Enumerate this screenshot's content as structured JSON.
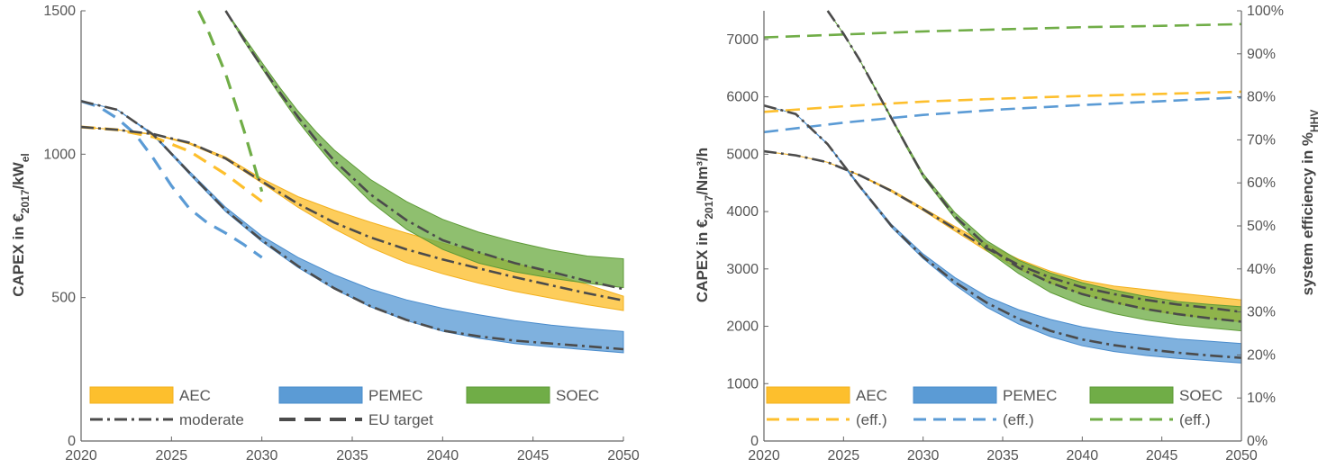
{
  "colors": {
    "AEC": "#fdbf2d",
    "AEC_stroke": "#f2b01e",
    "PEMEC": "#5b9bd5",
    "PEMEC_stroke": "#4a8ccc",
    "SOEC": "#70ad47",
    "SOEC_stroke": "#5e9a37",
    "dark": "#4b4b4b",
    "axis": "#666666"
  },
  "chart_data": [
    {
      "type": "area",
      "ylabel_main": "CAPEX in €",
      "ylabel_sub": "2017",
      "ylabel_tail": "/kW",
      "ylabel_tail_sub": "el",
      "xlim": [
        2020,
        2050
      ],
      "ylim": [
        0,
        1500
      ],
      "xticks": [
        "2020",
        "2025",
        "2030",
        "2035",
        "2040",
        "2045",
        "2050"
      ],
      "yticks": [
        "0",
        "500",
        "1000",
        "1500"
      ],
      "bands": [
        {
          "name": "AEC",
          "x": [
            2020,
            2022,
            2024,
            2026,
            2028,
            2030,
            2032,
            2034,
            2036,
            2038,
            2040,
            2042,
            2044,
            2046,
            2048,
            2050
          ],
          "upper": [
            1095,
            1085,
            1070,
            1040,
            990,
            915,
            852,
            805,
            763,
            725,
            690,
            655,
            620,
            583,
            545,
            505
          ],
          "lower": [
            1095,
            1085,
            1068,
            1035,
            982,
            900,
            815,
            740,
            675,
            622,
            583,
            550,
            522,
            498,
            475,
            455
          ]
        },
        {
          "name": "PEMEC",
          "x": [
            2020,
            2022,
            2024,
            2026,
            2028,
            2030,
            2032,
            2034,
            2036,
            2038,
            2040,
            2042,
            2044,
            2046,
            2048,
            2050
          ],
          "upper": [
            1185,
            1155,
            1070,
            940,
            815,
            715,
            640,
            580,
            530,
            492,
            463,
            440,
            420,
            404,
            392,
            382
          ],
          "lower": [
            1185,
            1155,
            1065,
            930,
            800,
            695,
            605,
            530,
            468,
            420,
            383,
            358,
            340,
            328,
            318,
            308
          ]
        },
        {
          "name": "SOEC",
          "x": [
            2028,
            2029,
            2030,
            2031,
            2032,
            2033,
            2034,
            2036,
            2038,
            2040,
            2042,
            2044,
            2046,
            2048,
            2050
          ],
          "upper": [
            1500,
            1410,
            1320,
            1232,
            1150,
            1078,
            1015,
            912,
            835,
            773,
            728,
            694,
            666,
            645,
            635
          ],
          "lower": [
            1500,
            1395,
            1300,
            1205,
            1115,
            1035,
            960,
            835,
            738,
            668,
            620,
            590,
            568,
            550,
            535
          ]
        }
      ],
      "moderate": [
        {
          "x": [
            2020,
            2022,
            2024,
            2026,
            2028,
            2030,
            2032,
            2034,
            2036,
            2038,
            2040,
            2042,
            2044,
            2046,
            2048,
            2050
          ],
          "y": [
            1095,
            1085,
            1070,
            1040,
            985,
            905,
            827,
            762,
            710,
            668,
            633,
            602,
            571,
            543,
            515,
            490
          ]
        },
        {
          "x": [
            2020,
            2022,
            2024,
            2026,
            2028,
            2030,
            2032,
            2034,
            2036,
            2038,
            2040,
            2042,
            2044,
            2046,
            2048,
            2050
          ],
          "y": [
            1185,
            1155,
            1068,
            935,
            805,
            700,
            610,
            533,
            470,
            422,
            385,
            365,
            350,
            340,
            330,
            320
          ]
        },
        {
          "x": [
            2028,
            2029,
            2030,
            2031,
            2032,
            2033,
            2034,
            2036,
            2038,
            2040,
            2042,
            2044,
            2046,
            2048,
            2050
          ],
          "y": [
            1500,
            1400,
            1305,
            1215,
            1130,
            1050,
            978,
            860,
            770,
            700,
            658,
            620,
            590,
            558,
            530
          ]
        }
      ],
      "eu_target": [
        {
          "name": "AEC",
          "x": [
            2020,
            2022,
            2024,
            2026,
            2028,
            2030
          ],
          "y": [
            1095,
            1085,
            1060,
            1010,
            930,
            835
          ]
        },
        {
          "name": "PEMEC",
          "x": [
            2020,
            2021,
            2022,
            2023,
            2024,
            2025,
            2026,
            2027,
            2028,
            2029,
            2030
          ],
          "y": [
            1185,
            1165,
            1125,
            1070,
            985,
            890,
            810,
            760,
            725,
            685,
            640
          ]
        },
        {
          "name": "SOEC",
          "x": [
            2026.5,
            2027,
            2028,
            2029,
            2030
          ],
          "y": [
            1500,
            1435,
            1280,
            1085,
            870
          ]
        }
      ],
      "legend": {
        "row1": [
          "AEC",
          "PEMEC",
          "SOEC"
        ],
        "row2": [
          "moderate",
          "EU target"
        ]
      }
    },
    {
      "type": "area",
      "ylabel_main": "CAPEX in €",
      "ylabel_sub": "2017",
      "ylabel_tail": "/Nm³/h",
      "y2label_main": "system efficiency in %",
      "y2label_sub": "HHV",
      "xlim": [
        2020,
        2050
      ],
      "ylim": [
        0,
        7500
      ],
      "y2lim": [
        0,
        100
      ],
      "xticks": [
        "2020",
        "2025",
        "2030",
        "2035",
        "2040",
        "2045",
        "2050"
      ],
      "yticks": [
        "0",
        "1000",
        "2000",
        "3000",
        "4000",
        "5000",
        "6000",
        "7000"
      ],
      "y2ticks": [
        "0%",
        "10%",
        "20%",
        "30%",
        "40%",
        "50%",
        "60%",
        "70%",
        "80%",
        "90%",
        "100%"
      ],
      "bands": [
        {
          "name": "AEC",
          "x": [
            2020,
            2022,
            2024,
            2026,
            2028,
            2030,
            2032,
            2034,
            2036,
            2038,
            2040,
            2042,
            2044,
            2046,
            2048,
            2050
          ],
          "upper": [
            5050,
            4980,
            4860,
            4640,
            4380,
            4060,
            3740,
            3440,
            3170,
            2960,
            2800,
            2700,
            2640,
            2580,
            2520,
            2460
          ],
          "lower": [
            5050,
            4980,
            4860,
            4630,
            4350,
            4020,
            3660,
            3310,
            3000,
            2750,
            2560,
            2410,
            2290,
            2200,
            2140,
            2080
          ]
        },
        {
          "name": "PEMEC",
          "x": [
            2020,
            2022,
            2024,
            2026,
            2028,
            2030,
            2032,
            2034,
            2036,
            2038,
            2040,
            2042,
            2044,
            2046,
            2048,
            2050
          ],
          "upper": [
            5850,
            5700,
            5180,
            4460,
            3780,
            3260,
            2850,
            2520,
            2290,
            2120,
            1990,
            1900,
            1840,
            1780,
            1740,
            1700
          ],
          "lower": [
            5850,
            5700,
            5170,
            4430,
            3730,
            3180,
            2720,
            2330,
            2040,
            1820,
            1660,
            1560,
            1490,
            1440,
            1400,
            1360
          ]
        },
        {
          "name": "SOEC",
          "x": [
            2024,
            2025,
            2026,
            2027,
            2028,
            2029,
            2030,
            2032,
            2034,
            2036,
            2038,
            2040,
            2042,
            2044,
            2046,
            2048,
            2050
          ],
          "upper": [
            7500,
            7100,
            6650,
            6150,
            5650,
            5150,
            4660,
            3980,
            3490,
            3150,
            2930,
            2760,
            2630,
            2520,
            2430,
            2380,
            2340
          ],
          "lower": [
            7500,
            7100,
            6650,
            6130,
            5620,
            5100,
            4600,
            3880,
            3320,
            2920,
            2590,
            2370,
            2220,
            2110,
            2030,
            1970,
            1920
          ]
        }
      ],
      "moderate": [
        {
          "x": [
            2020,
            2022,
            2024,
            2026,
            2028,
            2030,
            2032,
            2034,
            2036,
            2038,
            2040,
            2042,
            2044,
            2046,
            2048,
            2050
          ],
          "y": [
            5050,
            4980,
            4860,
            4635,
            4360,
            4040,
            3700,
            3360,
            3070,
            2850,
            2680,
            2560,
            2460,
            2380,
            2320,
            2250
          ]
        },
        {
          "x": [
            2020,
            2022,
            2024,
            2026,
            2028,
            2030,
            2032,
            2034,
            2036,
            2038,
            2040,
            2042,
            2044,
            2046,
            2048,
            2050
          ],
          "y": [
            5850,
            5700,
            5175,
            4445,
            3755,
            3210,
            2770,
            2410,
            2130,
            1920,
            1770,
            1670,
            1600,
            1540,
            1490,
            1450
          ]
        },
        {
          "x": [
            2024,
            2025,
            2026,
            2027,
            2028,
            2029,
            2030,
            2032,
            2034,
            2036,
            2038,
            2040,
            2042,
            2044,
            2046,
            2048,
            2050
          ],
          "y": [
            7500,
            7100,
            6650,
            6140,
            5635,
            5125,
            4630,
            3920,
            3400,
            3020,
            2760,
            2560,
            2420,
            2300,
            2210,
            2140,
            2080
          ]
        }
      ],
      "efficiency": [
        {
          "name": "AEC",
          "x": [
            2020,
            2025,
            2030,
            2035,
            2040,
            2045,
            2050
          ],
          "y": [
            76.5,
            77.8,
            78.9,
            79.6,
            80.2,
            80.7,
            81.2
          ]
        },
        {
          "name": "PEMEC",
          "x": [
            2020,
            2025,
            2030,
            2035,
            2040,
            2045,
            2050
          ],
          "y": [
            71.8,
            74.0,
            75.8,
            77.1,
            78.1,
            79.0,
            79.9
          ]
        },
        {
          "name": "SOEC",
          "x": [
            2020,
            2025,
            2030,
            2035,
            2040,
            2045,
            2050
          ],
          "y": [
            93.8,
            94.5,
            95.2,
            95.7,
            96.2,
            96.5,
            96.9
          ]
        }
      ],
      "legend": {
        "row1": [
          "AEC",
          "PEMEC",
          "SOEC"
        ],
        "row2": [
          "(eff.)",
          "(eff.)",
          "(eff.)"
        ]
      }
    }
  ]
}
